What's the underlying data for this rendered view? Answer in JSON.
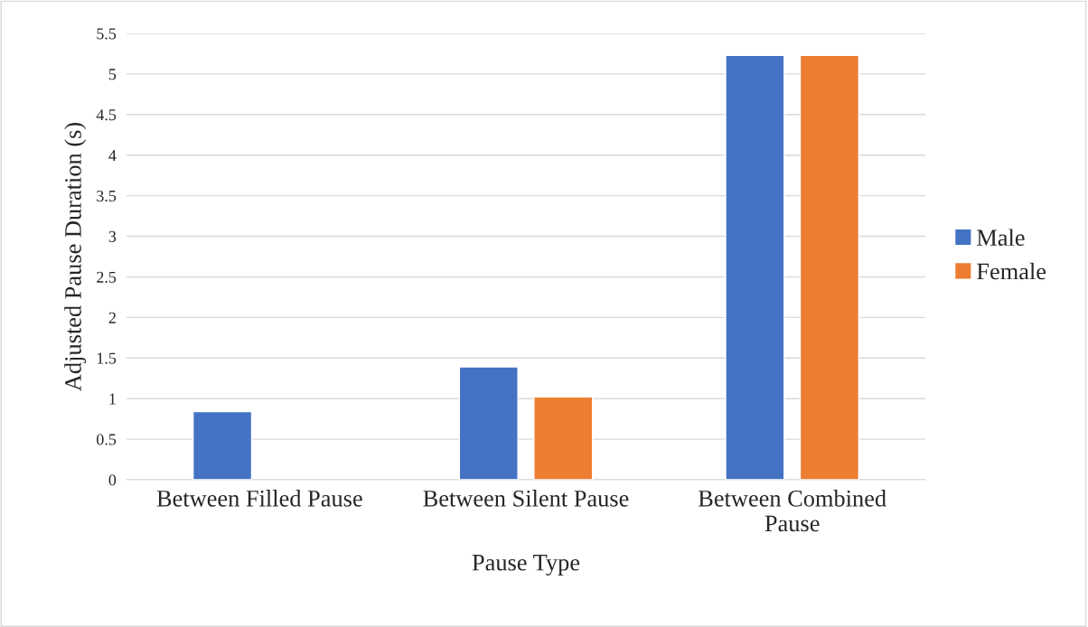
{
  "chart_data": {
    "type": "bar",
    "xlabel": "Pause Type",
    "ylabel": "Adjusted Pause Duration (s)",
    "categories": [
      "Between Filled Pause",
      "Between Silent Pause",
      "Between Combined\nPause"
    ],
    "series": [
      {
        "name": "Male",
        "color": "#4472c4",
        "values": [
          0.84,
          1.39,
          5.23
        ]
      },
      {
        "name": "Female",
        "color": "#ed7d31",
        "values": [
          null,
          1.02,
          5.23
        ]
      }
    ],
    "ylim": [
      0,
      5.5
    ],
    "yticks": [
      0,
      {
        "value": 0.5,
        "label": "0.5"
      },
      1,
      {
        "value": 1.5,
        "label": "1.5"
      },
      2,
      {
        "value": 2.5,
        "label": "2.5"
      },
      3,
      {
        "value": 3.5,
        "label": "3.5"
      },
      4,
      {
        "value": 4.5,
        "label": "4.5"
      },
      5,
      {
        "value": 5.5,
        "label": "5.5"
      }
    ],
    "grid": "y",
    "legend": "right"
  }
}
